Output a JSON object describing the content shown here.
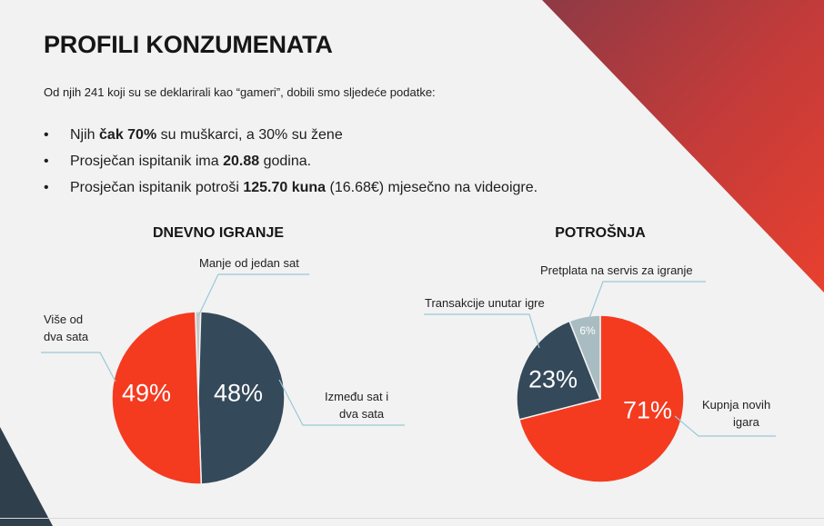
{
  "header": {
    "title": "PROFILI KONZUMENATA",
    "intro": "Od njih 241 koji su se deklarirali kao “gameri”, dobili smo sljedeće podatke:"
  },
  "facts": [
    {
      "pre": "Njih ",
      "bold": "čak 70%",
      "post": " su muškarci, a 30% su žene"
    },
    {
      "pre": "Prosječan ispitanik ima ",
      "bold": "20.88",
      "post": " godina."
    },
    {
      "pre": "Prosječan ispitanik potroši ",
      "bold": "125.70 kuna",
      "post": " (16.68€) mjesečno na videoigre."
    }
  ],
  "bullet": "•",
  "colors": {
    "red": "#f43b20",
    "navy": "#34495a",
    "grey_light": "#c8c8c8",
    "grey_blue": "#a9bcc2",
    "leader": "#9ac8d6",
    "deco_dark": "#2f3f4c",
    "deco_red": "#c43c3c"
  },
  "chart_data": [
    {
      "type": "pie",
      "title": "DNEVNO IGRANJE",
      "slices": [
        {
          "label": "Manje od jedan sat",
          "value": 1,
          "value_label": "",
          "color": "#c8c8c8"
        },
        {
          "label": "Između sat i dva sata",
          "value": 48,
          "value_label": "48%",
          "color": "#34495a"
        },
        {
          "label": "Više od dva sata",
          "value": 49,
          "value_label": "49%",
          "color": "#f43b20"
        }
      ]
    },
    {
      "type": "pie",
      "title": "POTROŠNJA",
      "slices": [
        {
          "label": "Kupnja novih igara",
          "value": 71,
          "value_label": "71%",
          "color": "#f43b20"
        },
        {
          "label": "Transakcije unutar igre",
          "value": 23,
          "value_label": "23%",
          "color": "#34495a"
        },
        {
          "label": "Pretplata na servis za igranje",
          "value": 6,
          "value_label": "6%",
          "color": "#a9bcc2"
        }
      ]
    }
  ]
}
